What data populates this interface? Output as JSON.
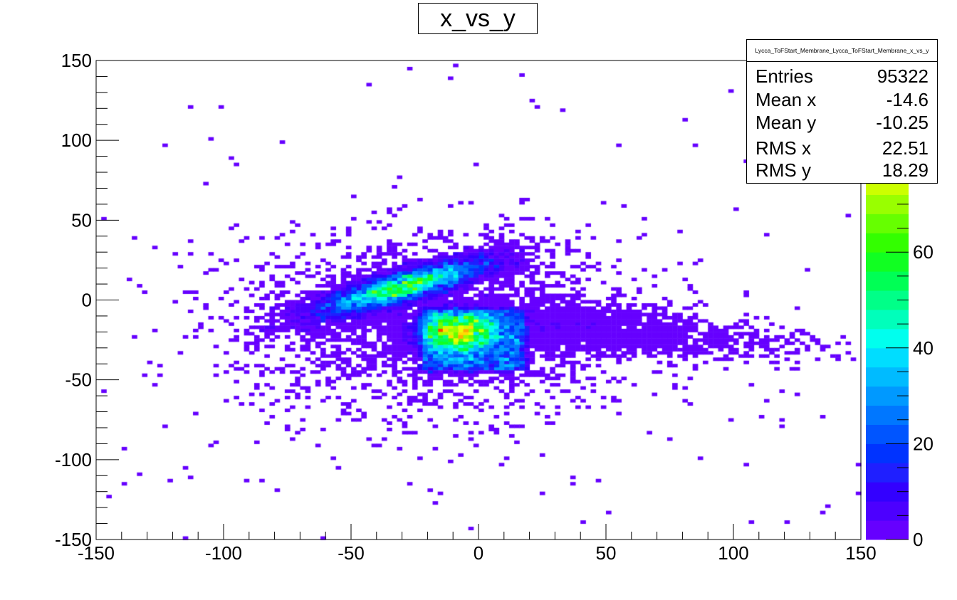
{
  "title": "x_vs_y",
  "stats": {
    "name": "Lycca_ToFStart_Membrane_Lycca_ToFStart_Membrane_x_vs_y",
    "rows": [
      {
        "label": "Entries",
        "value": "95322"
      },
      {
        "label": "Mean x",
        "value": "-14.6"
      },
      {
        "label": "Mean y",
        "value": "-10.25"
      },
      {
        "label": "RMS x",
        "value": "22.51"
      },
      {
        "label": "RMS y",
        "value": "18.29"
      }
    ]
  },
  "chart_data": {
    "type": "heatmap",
    "title": "x_vs_y",
    "xlabel": "",
    "ylabel": "",
    "xlim": [
      -150,
      150
    ],
    "ylim": [
      -150,
      150
    ],
    "xticks": [
      -150,
      -100,
      -50,
      0,
      50,
      100,
      150
    ],
    "yticks": [
      -150,
      -100,
      -50,
      0,
      50,
      100,
      150
    ],
    "zlim": [
      0,
      100
    ],
    "zticks": [
      0,
      20,
      40,
      60,
      80
    ],
    "grid": false,
    "colorbar": true,
    "colors": [
      "#6600ff",
      "#4c00ff",
      "#3300ff",
      "#1f1fff",
      "#0033ff",
      "#0055ff",
      "#0077ff",
      "#0099ff",
      "#00bbff",
      "#00ddff",
      "#00ffee",
      "#00ffbb",
      "#00ff88",
      "#00ff55",
      "#11ff22",
      "#33ff00",
      "#66ff00",
      "#99ff00",
      "#ccff00",
      "#eeff00",
      "#ffdd00",
      "#ffaa00",
      "#ff7700",
      "#ff4400",
      "#ff0000"
    ],
    "clusters": [
      {
        "name": "upper-left blob",
        "center": [
          -30,
          15
        ],
        "extent_x": [
          -80,
          15
        ],
        "extent_y": [
          -20,
          40
        ],
        "peak_counts": 45
      },
      {
        "name": "core block",
        "center": [
          -8,
          -20
        ],
        "extent_x": [
          -22,
          18
        ],
        "extent_y": [
          -45,
          -5
        ],
        "peak_counts": 95
      },
      {
        "name": "right tail",
        "center": [
          50,
          -22
        ],
        "extent_x": [
          15,
          120
        ],
        "extent_y": [
          -40,
          -5
        ],
        "peak_counts": 8
      }
    ]
  }
}
